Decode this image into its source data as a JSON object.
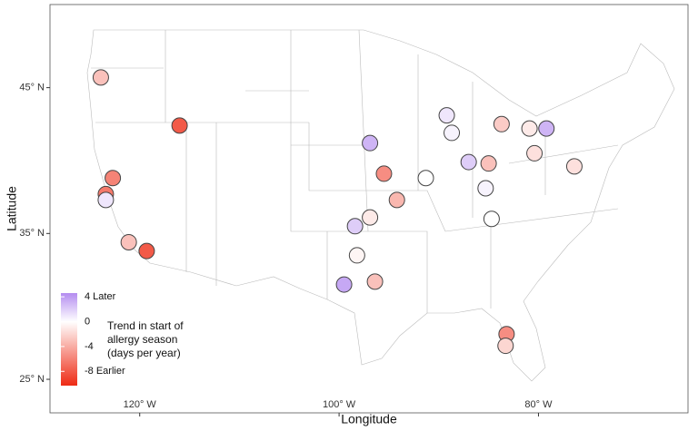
{
  "chart_data": {
    "type": "scatter",
    "x_label": "Longitude",
    "y_label": "Latitude",
    "xlim": [
      -129,
      -65
    ],
    "ylim": [
      22.7,
      50.7
    ],
    "xticks": [
      {
        "value": -120,
        "label": "120° W"
      },
      {
        "value": -100,
        "label": "100° W"
      },
      {
        "value": -80,
        "label": "80° W"
      }
    ],
    "yticks": [
      {
        "value": 25,
        "label": "25° N"
      },
      {
        "value": 35,
        "label": "35° N"
      },
      {
        "value": 45,
        "label": "45° N"
      }
    ],
    "x": [
      -123.9,
      -116.0,
      -122.7,
      -123.4,
      -123.4,
      -121.1,
      -119.3,
      -96.9,
      -95.5,
      -94.2,
      -96.9,
      -98.4,
      -98.2,
      -96.4,
      -99.5,
      -89.2,
      -88.7,
      -91.3,
      -87.0,
      -85.0,
      -85.3,
      -84.7,
      -83.7,
      -80.9,
      -79.2,
      -80.4,
      -76.4,
      -83.2,
      -83.3
    ],
    "y": [
      45.7,
      42.4,
      38.8,
      37.7,
      37.3,
      34.4,
      33.8,
      41.2,
      39.1,
      37.3,
      36.1,
      35.5,
      33.5,
      31.7,
      31.5,
      43.1,
      41.9,
      38.8,
      39.9,
      39.8,
      38.1,
      36.0,
      42.5,
      42.2,
      42.2,
      40.5,
      39.6,
      28.1,
      27.3
    ],
    "values": [
      -3,
      -8,
      -6,
      -6.5,
      1,
      -3,
      -8,
      3,
      -5.5,
      -3.5,
      -1,
      2,
      -0.5,
      -3,
      3.5,
      1,
      0.5,
      0,
      2,
      -3,
      0.5,
      0,
      -2.5,
      -1,
      3,
      -1.5,
      -1.5,
      -5.5,
      -2
    ],
    "legend_title": [
      "Trend in start of",
      "allergy season",
      "(days per year)"
    ],
    "colorlim": [
      -10.3,
      4.6
    ],
    "colorticks": [
      {
        "value": -8,
        "label": "-8 Earlier"
      },
      -4,
      0,
      {
        "value": 4,
        "label": "4 Later"
      }
    ],
    "color_scale": {
      "low": "#ee2a14",
      "mid": "#ffffff",
      "high": "#b48cf0"
    }
  }
}
